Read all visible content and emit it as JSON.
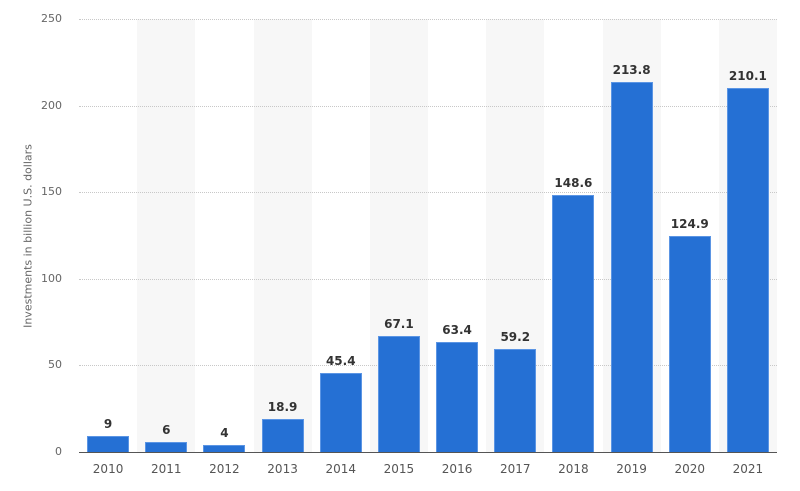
{
  "chart_data": {
    "type": "bar",
    "title": "",
    "xlabel": "",
    "ylabel": "Investments in billion U.S. dollars",
    "categories": [
      "2010",
      "2011",
      "2012",
      "2013",
      "2014",
      "2015",
      "2016",
      "2017",
      "2018",
      "2019",
      "2020",
      "2021"
    ],
    "values": [
      9,
      6,
      4,
      18.9,
      45.4,
      67.1,
      63.4,
      59.2,
      148.6,
      213.8,
      124.9,
      210.1
    ],
    "value_labels": [
      "9",
      "6",
      "4",
      "18.9",
      "45.4",
      "67.1",
      "63.4",
      "59.2",
      "148.6",
      "213.8",
      "124.9",
      "210.1"
    ],
    "ylim": [
      0,
      250
    ],
    "yticks": [
      0,
      50,
      100,
      150,
      200,
      250
    ],
    "grid": true,
    "legend": null,
    "colors": {
      "bar": "#2570d4",
      "band": "#f7f7f7"
    }
  }
}
